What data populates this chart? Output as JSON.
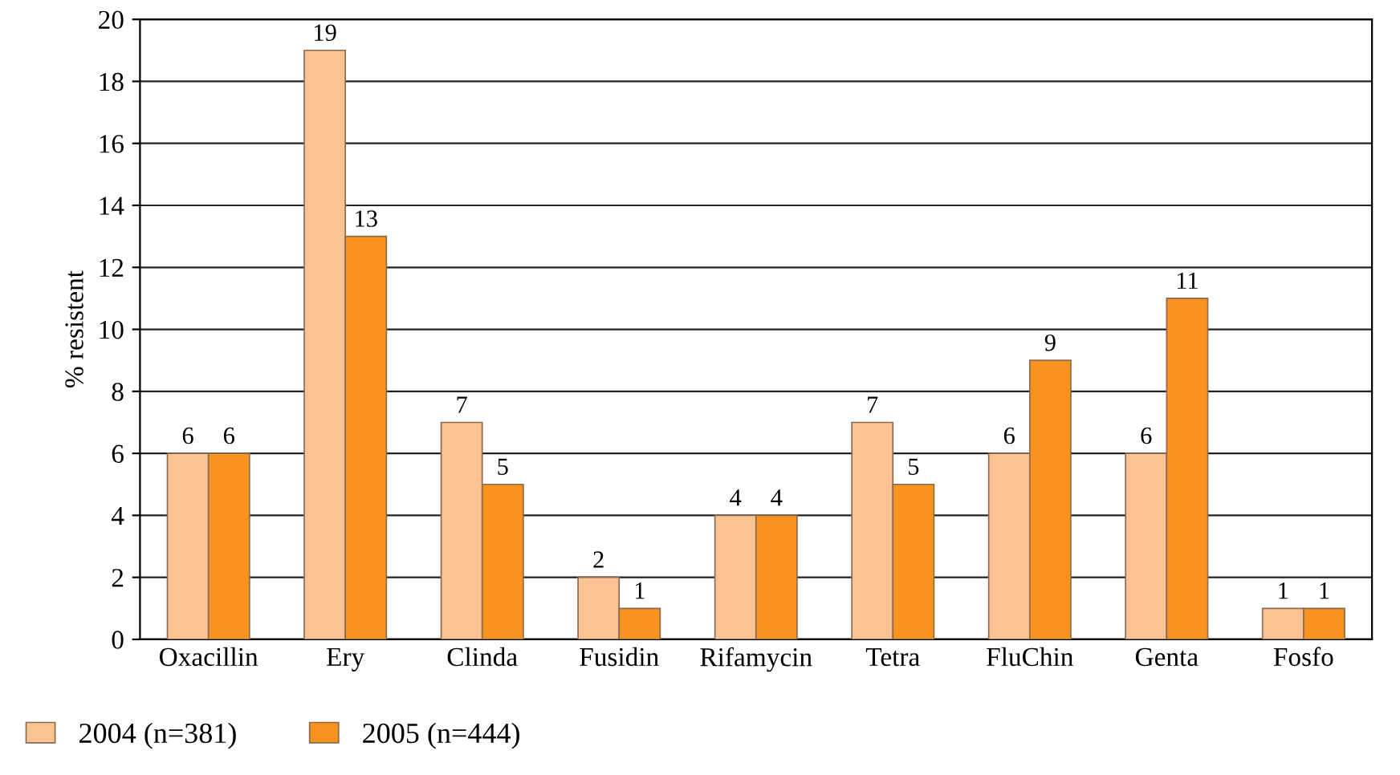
{
  "chart_data": {
    "type": "bar",
    "ylabel": "% resistent",
    "categories": [
      "Oxacillin",
      "Ery",
      "Clinda",
      "Fusidin",
      "Rifamycin",
      "Tetra",
      "FluChin",
      "Genta",
      "Fosfo"
    ],
    "series": [
      {
        "name": "2004 (n=381)",
        "color": "#fbc393",
        "values": [
          6,
          19,
          7,
          2,
          4,
          7,
          6,
          6,
          1
        ]
      },
      {
        "name": "2005 (n=444)",
        "color": "#f7931e",
        "values": [
          6,
          13,
          5,
          1,
          4,
          5,
          9,
          11,
          1
        ]
      }
    ],
    "ylim": [
      0,
      20
    ],
    "yticks": [
      0,
      2,
      4,
      6,
      8,
      10,
      12,
      14,
      16,
      18,
      20
    ],
    "grid": "y",
    "legend": "bottom left",
    "data_labels": true
  }
}
